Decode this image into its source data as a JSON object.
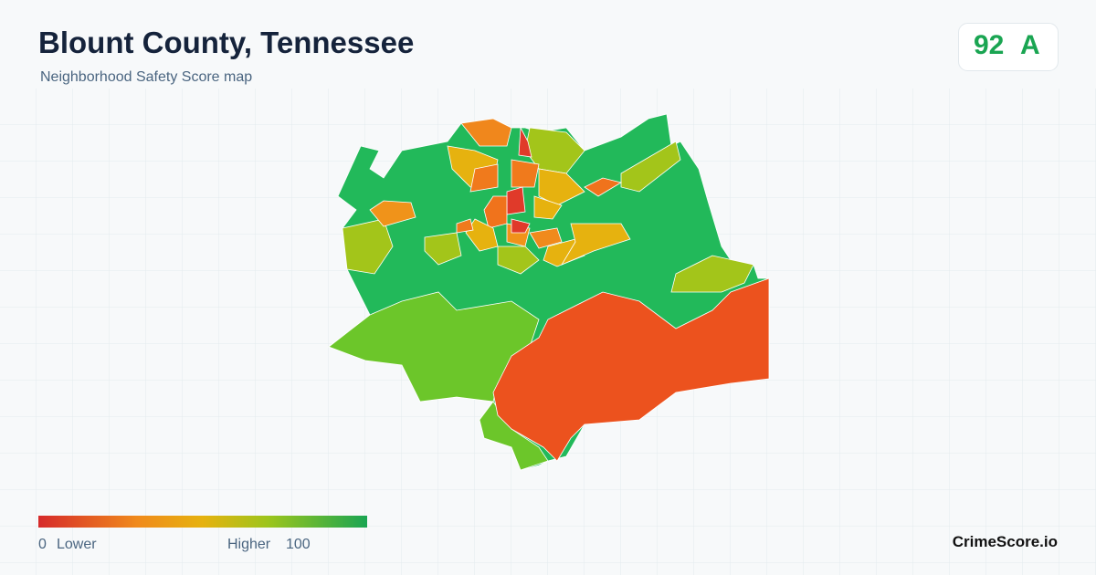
{
  "header": {
    "title": "Blount County, Tennessee",
    "subtitle": "Neighborhood Safety Score map"
  },
  "score": {
    "value": 92,
    "grade": "A"
  },
  "legend": {
    "min": 0,
    "low_label": "Lower",
    "high_label": "Higher",
    "max": 100
  },
  "brand": "CrimeScore.io"
}
